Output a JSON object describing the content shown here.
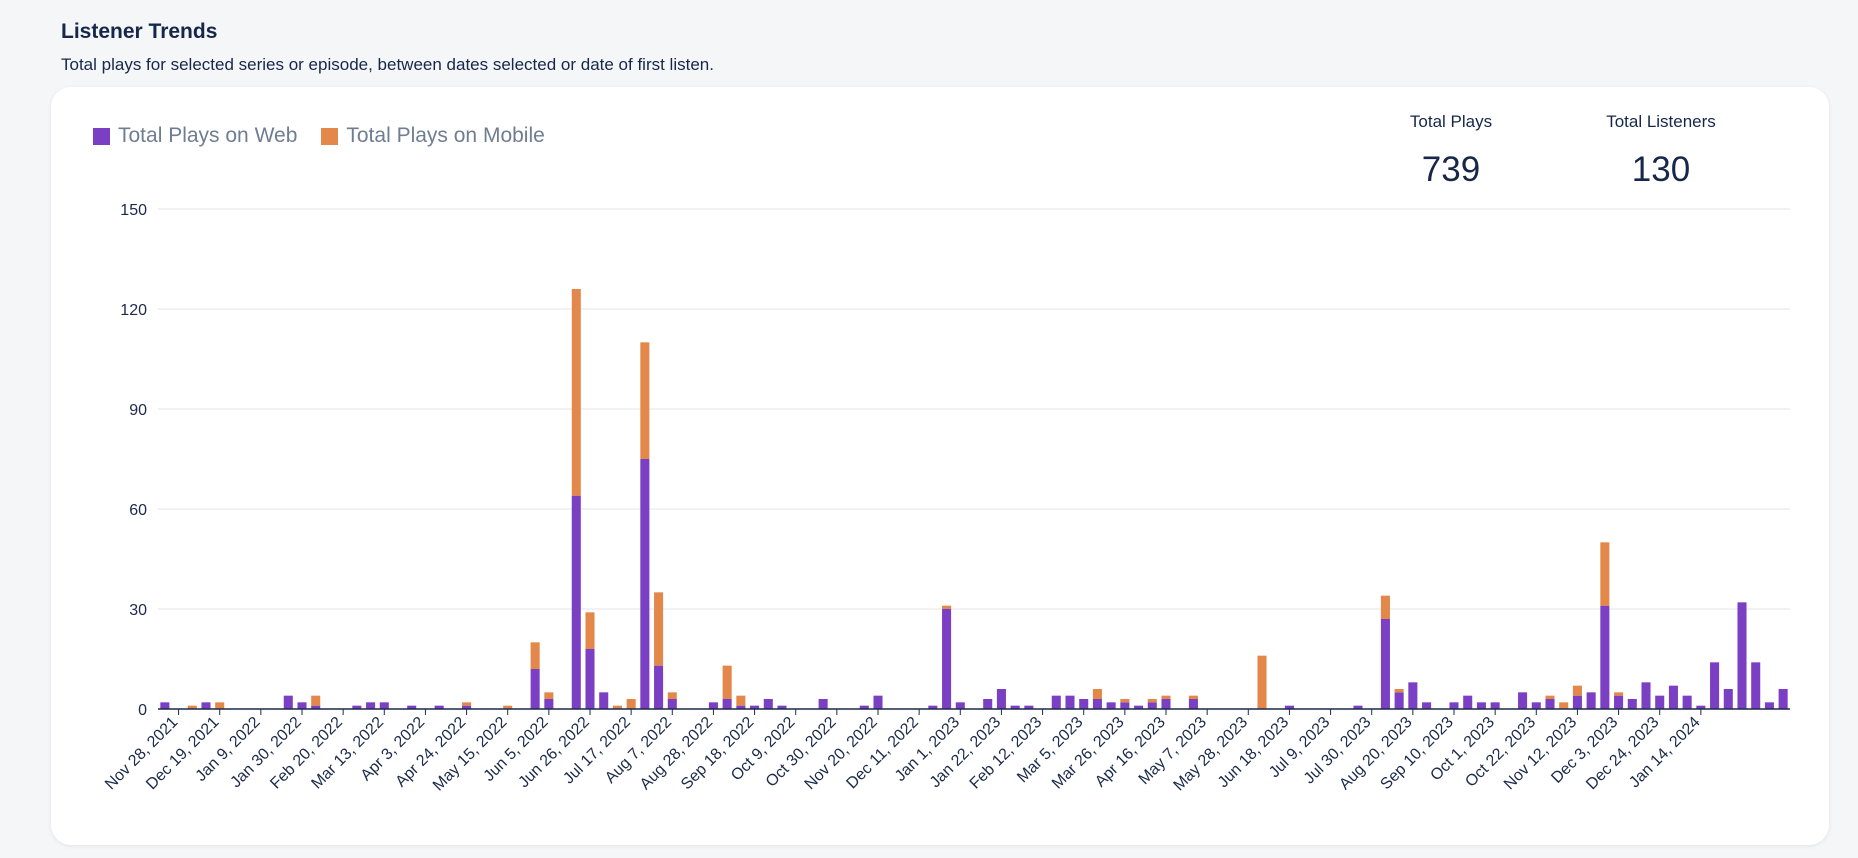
{
  "header": {
    "title": "Listener Trends",
    "subtitle": "Total plays for selected series or episode, between dates selected or date of first listen."
  },
  "stats": {
    "plays_label": "Total Plays",
    "plays_value": "739",
    "listeners_label": "Total Listeners",
    "listeners_value": "130"
  },
  "colors": {
    "web": "#7b3fc4",
    "mobile": "#e4874a",
    "grid": "#e4e6ea",
    "axis": "#1b2a4a"
  },
  "chart_data": {
    "type": "bar",
    "stacked": true,
    "legend": "top-left",
    "grid": true,
    "ylim": [
      0,
      150
    ],
    "yticks": [
      0,
      30,
      60,
      90,
      120,
      150
    ],
    "xlabel": "",
    "ylabel": "",
    "tick_labels": [
      "Nov 28, 2021",
      "Dec 19, 2021",
      "Jan 9, 2022",
      "Jan 30, 2022",
      "Feb 20, 2022",
      "Mar 13, 2022",
      "Apr 3, 2022",
      "Apr 24, 2022",
      "May 15, 2022",
      "Jun 5, 2022",
      "Jun 26, 2022",
      "Jul 17, 2022",
      "Aug 7, 2022",
      "Aug 28, 2022",
      "Sep 18, 2022",
      "Oct 9, 2022",
      "Oct 30, 2022",
      "Nov 20, 2022",
      "Dec 11, 2022",
      "Jan 1, 2023",
      "Jan 22, 2023",
      "Feb 12, 2023",
      "Mar 5, 2023",
      "Mar 26, 2023",
      "Apr 16, 2023",
      "May 7, 2023",
      "May 28, 2023",
      "Jun 18, 2023",
      "Jul 9, 2023",
      "Jul 30, 2023",
      "Aug 20, 2023",
      "Sep 10, 2023",
      "Oct 1, 2023",
      "Oct 22, 2023",
      "Nov 12, 2023",
      "Dec 3, 2023",
      "Dec 24, 2023",
      "Jan 14, 2024"
    ],
    "series": [
      {
        "name": "Total Plays on Web",
        "values": [
          2,
          0,
          0,
          2,
          0,
          0,
          0,
          0,
          0,
          4,
          2,
          1,
          0,
          0,
          1,
          2,
          2,
          0,
          1,
          0,
          1,
          0,
          1,
          0,
          0,
          0,
          0,
          12,
          3,
          0,
          64,
          18,
          5,
          0,
          0,
          75,
          13,
          3,
          0,
          0,
          2,
          3,
          1,
          1,
          3,
          1,
          0,
          0,
          3,
          0,
          0,
          1,
          4,
          0,
          0,
          0,
          1,
          30,
          2,
          0,
          3,
          6,
          1,
          1,
          0,
          4,
          4,
          3,
          3,
          2,
          2,
          1,
          2,
          3,
          0,
          3,
          0,
          0,
          0,
          0,
          0,
          0,
          1,
          0,
          0,
          0,
          0,
          1,
          0,
          27,
          5,
          8,
          2,
          0,
          2,
          4,
          2,
          2,
          0,
          5,
          2,
          3,
          0,
          4,
          5,
          31,
          4,
          3,
          8,
          4,
          7,
          4,
          1,
          14,
          6,
          32,
          14,
          2,
          6
        ]
      },
      {
        "name": "Total Plays on Mobile",
        "values": [
          0,
          0,
          1,
          0,
          2,
          0,
          0,
          0,
          0,
          0,
          0,
          3,
          0,
          0,
          0,
          0,
          0,
          0,
          0,
          0,
          0,
          0,
          1,
          0,
          0,
          1,
          0,
          8,
          2,
          0,
          62,
          11,
          0,
          1,
          3,
          35,
          22,
          2,
          0,
          0,
          0,
          10,
          3,
          0,
          0,
          0,
          0,
          0,
          0,
          0,
          0,
          0,
          0,
          0,
          0,
          0,
          0,
          1,
          0,
          0,
          0,
          0,
          0,
          0,
          0,
          0,
          0,
          0,
          3,
          0,
          1,
          0,
          1,
          1,
          0,
          1,
          0,
          0,
          0,
          0,
          16,
          0,
          0,
          0,
          0,
          0,
          0,
          0,
          0,
          7,
          1,
          0,
          0,
          0,
          0,
          0,
          0,
          0,
          0,
          0,
          0,
          1,
          2,
          3,
          0,
          19,
          1,
          0,
          0,
          0,
          0,
          0,
          0,
          0,
          0,
          0,
          0,
          0,
          0
        ]
      }
    ]
  }
}
